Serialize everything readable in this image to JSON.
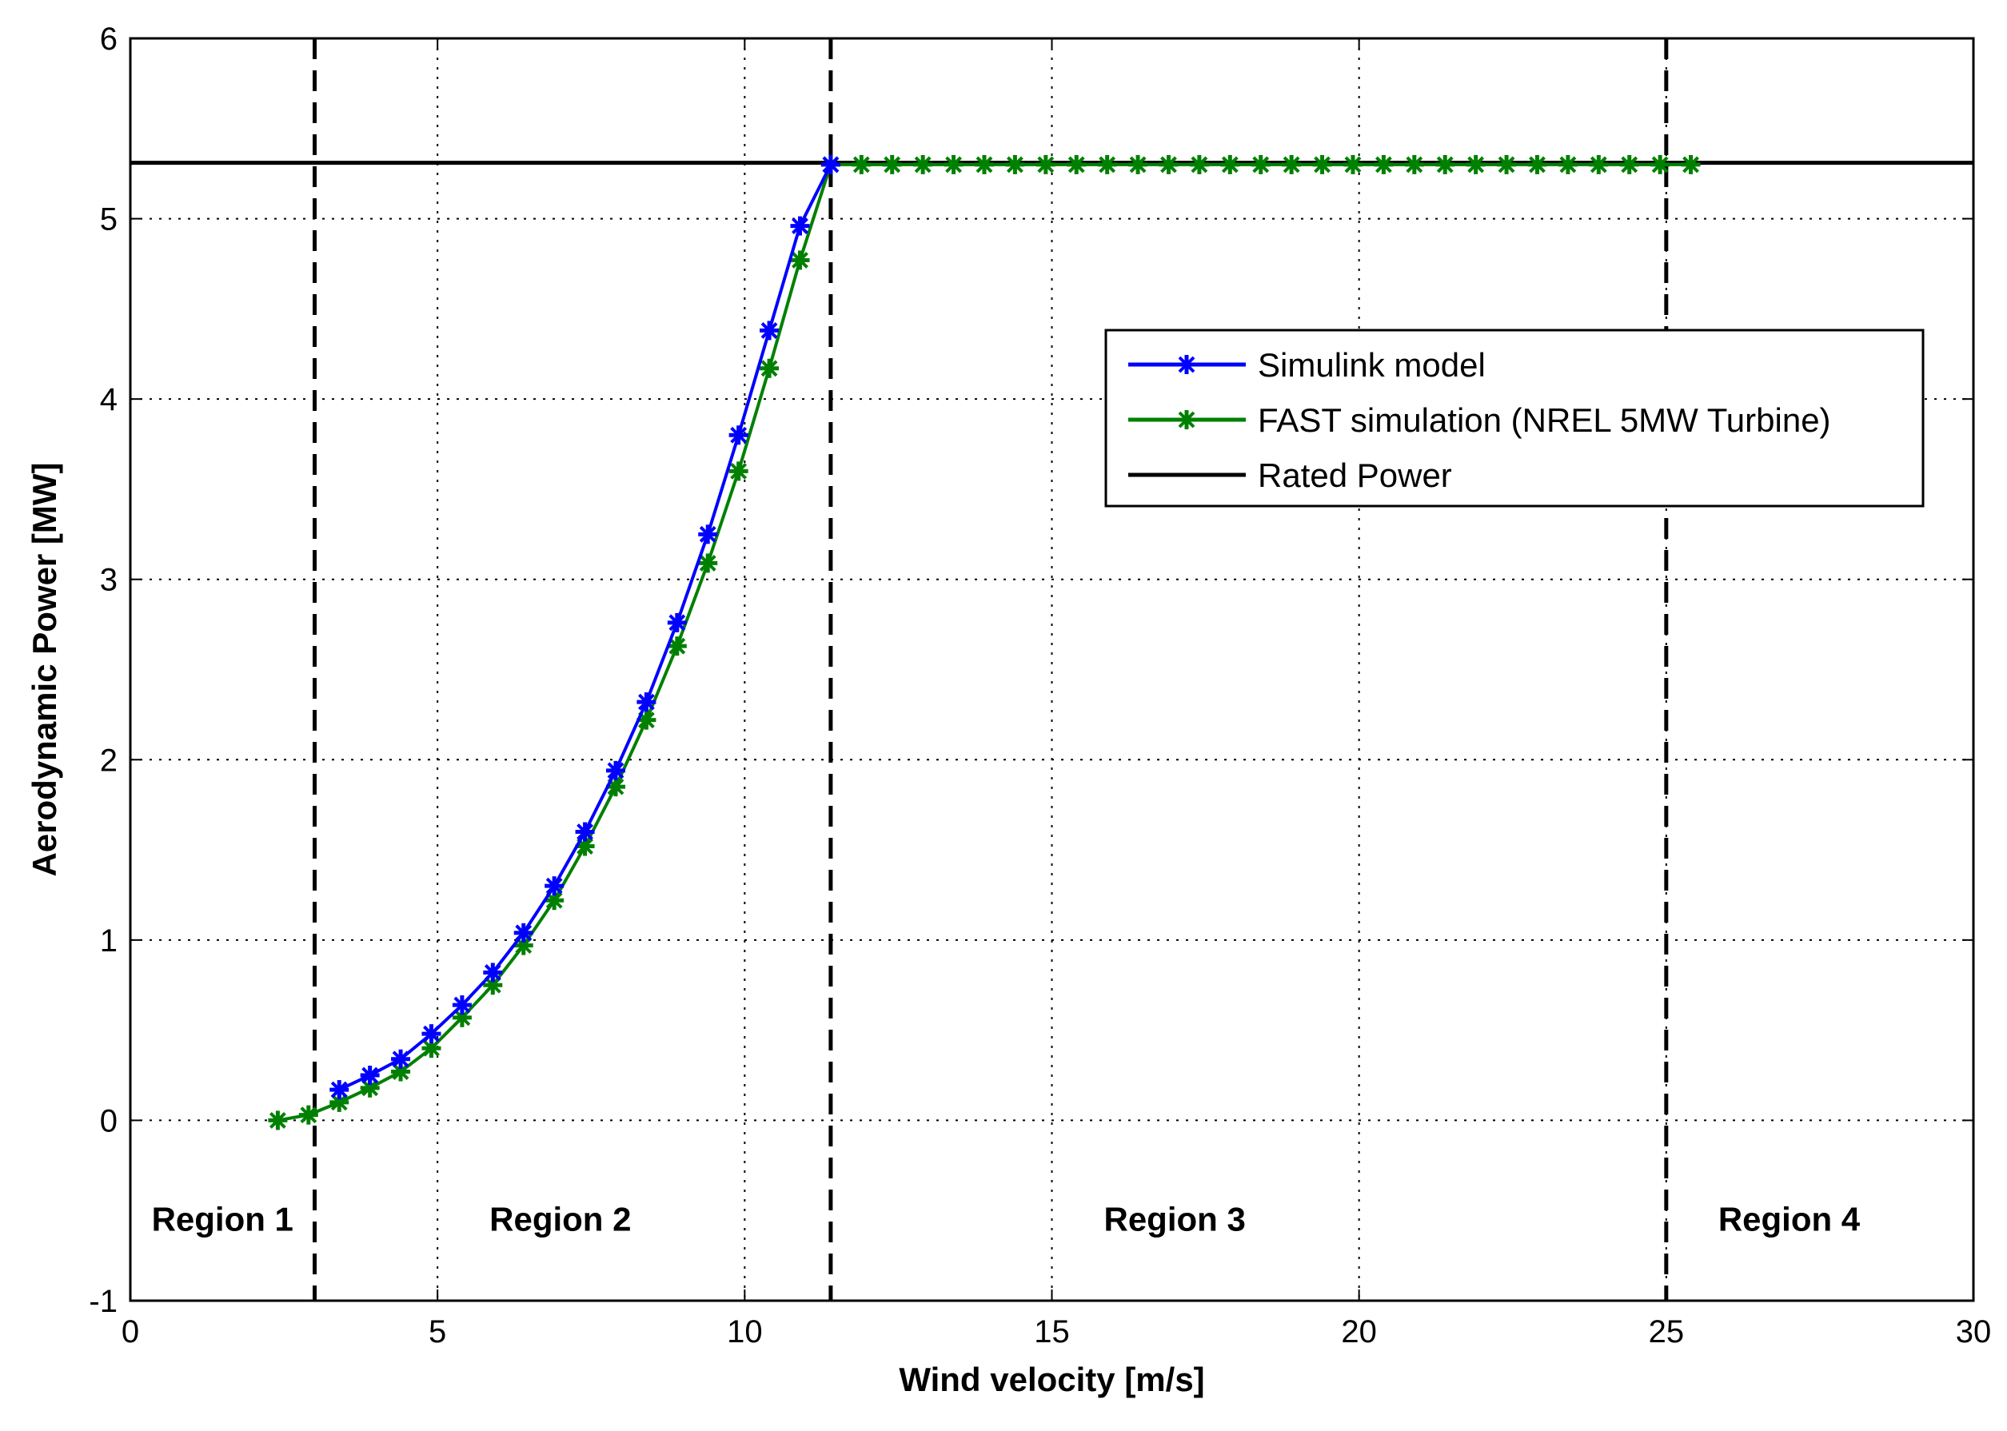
{
  "chart_data": {
    "type": "line",
    "title": "",
    "xlabel": "Wind velocity [m/s]",
    "ylabel": "Aerodynamic Power [MW]",
    "xlim": [
      0,
      30
    ],
    "ylim": [
      -1,
      6
    ],
    "xticks": [
      0,
      5,
      10,
      15,
      20,
      25,
      30
    ],
    "yticks": [
      -1,
      0,
      1,
      2,
      3,
      4,
      5,
      6
    ],
    "grid": true,
    "legend_position": "upper-right",
    "series": [
      {
        "name": "Simulink model",
        "color": "#0000ff",
        "marker": "star",
        "x": [
          3.4,
          3.9,
          4.4,
          4.9,
          5.4,
          5.9,
          6.4,
          6.9,
          7.4,
          7.9,
          8.4,
          8.9,
          9.4,
          9.9,
          10.4,
          10.9,
          11.4
        ],
        "y": [
          0.17,
          0.25,
          0.34,
          0.48,
          0.64,
          0.82,
          1.04,
          1.3,
          1.6,
          1.94,
          2.32,
          2.76,
          3.25,
          3.8,
          4.38,
          4.96,
          5.3
        ]
      },
      {
        "name": "FAST simulation (NREL 5MW Turbine)",
        "color": "#008000",
        "marker": "star",
        "x": [
          2.4,
          2.9,
          3.4,
          3.9,
          4.4,
          4.9,
          5.4,
          5.9,
          6.4,
          6.9,
          7.4,
          7.9,
          8.4,
          8.9,
          9.4,
          9.9,
          10.4,
          10.9,
          11.4,
          11.9,
          12.4,
          12.9,
          13.4,
          13.9,
          14.4,
          14.9,
          15.4,
          15.9,
          16.4,
          16.9,
          17.4,
          17.9,
          18.4,
          18.9,
          19.4,
          19.9,
          20.4,
          20.9,
          21.4,
          21.9,
          22.4,
          22.9,
          23.4,
          23.9,
          24.4,
          24.9,
          25.4
        ],
        "y": [
          0.0,
          0.03,
          0.1,
          0.18,
          0.27,
          0.4,
          0.57,
          0.75,
          0.97,
          1.22,
          1.52,
          1.85,
          2.22,
          2.63,
          3.09,
          3.6,
          4.17,
          4.77,
          5.3,
          5.3,
          5.3,
          5.3,
          5.3,
          5.3,
          5.3,
          5.3,
          5.3,
          5.3,
          5.3,
          5.3,
          5.3,
          5.3,
          5.3,
          5.3,
          5.3,
          5.3,
          5.3,
          5.3,
          5.3,
          5.3,
          5.3,
          5.3,
          5.3,
          5.3,
          5.3,
          5.3,
          5.3
        ]
      },
      {
        "name": "Rated Power",
        "color": "#000000",
        "marker": "none",
        "x": [
          0,
          30
        ],
        "y": [
          5.31,
          5.31
        ]
      }
    ],
    "region_boundaries": [
      3,
      11.4,
      25
    ],
    "regions": [
      {
        "label": "Region 1",
        "x": 1.5
      },
      {
        "label": "Region 2",
        "x": 7.0
      },
      {
        "label": "Region 3",
        "x": 17.0
      },
      {
        "label": "Region 4",
        "x": 27.0
      }
    ]
  }
}
